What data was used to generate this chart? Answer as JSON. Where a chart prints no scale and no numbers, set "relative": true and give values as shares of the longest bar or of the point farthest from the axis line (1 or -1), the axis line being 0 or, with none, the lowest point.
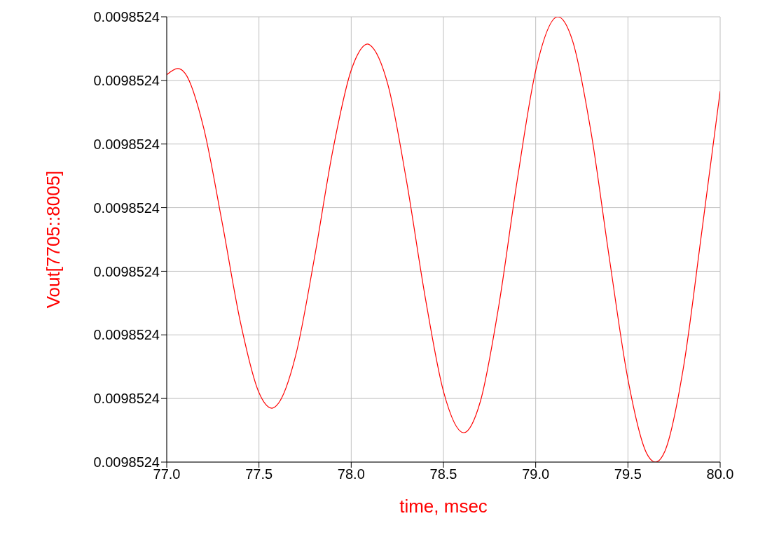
{
  "chart_data": {
    "type": "line",
    "xlabel": "time, msec",
    "ylabel": "Vout[7705::8005]",
    "relative": true,
    "annotations": [
      "0.0098524",
      "0.0098524",
      "0.0098524",
      "0.0098524",
      "0.0098524",
      "0.0098524",
      "0.0098524",
      "0.0098524"
    ],
    "x": [
      77.0,
      77.06,
      77.1,
      77.2,
      77.3,
      77.4,
      77.5,
      77.57,
      77.6,
      77.7,
      77.8,
      77.9,
      78.0,
      78.09,
      78.1,
      78.2,
      78.3,
      78.4,
      78.5,
      78.61,
      78.7,
      78.8,
      78.9,
      79.0,
      79.12,
      79.2,
      79.3,
      79.4,
      79.5,
      79.6,
      79.65,
      79.7,
      79.8,
      79.9,
      80.0
    ],
    "series": [
      {
        "color": "#ff0000",
        "values": [
          0.87,
          0.884,
          0.873,
          0.751,
          0.539,
          0.313,
          0.156,
          0.121,
          0.129,
          0.241,
          0.457,
          0.699,
          0.88,
          0.939,
          0.937,
          0.846,
          0.631,
          0.373,
          0.159,
          0.066,
          0.136,
          0.351,
          0.633,
          0.879,
          1,
          0.946,
          0.741,
          0.456,
          0.186,
          0.021,
          0,
          0.024,
          0.21,
          0.516,
          0.833
        ]
      }
    ],
    "xlim": [
      77,
      80
    ],
    "xticks": [
      {
        "value": 77,
        "label": "77.0"
      },
      {
        "value": 77.5,
        "label": "77.5"
      },
      {
        "value": 78,
        "label": "78.0"
      },
      {
        "value": 78.5,
        "label": "78.5"
      },
      {
        "value": 79,
        "label": "79.0"
      },
      {
        "value": 79.5,
        "label": "79.5"
      },
      {
        "value": 80,
        "label": "80.0"
      }
    ],
    "grid": true,
    "marker": "none",
    "line_style": "solid"
  }
}
